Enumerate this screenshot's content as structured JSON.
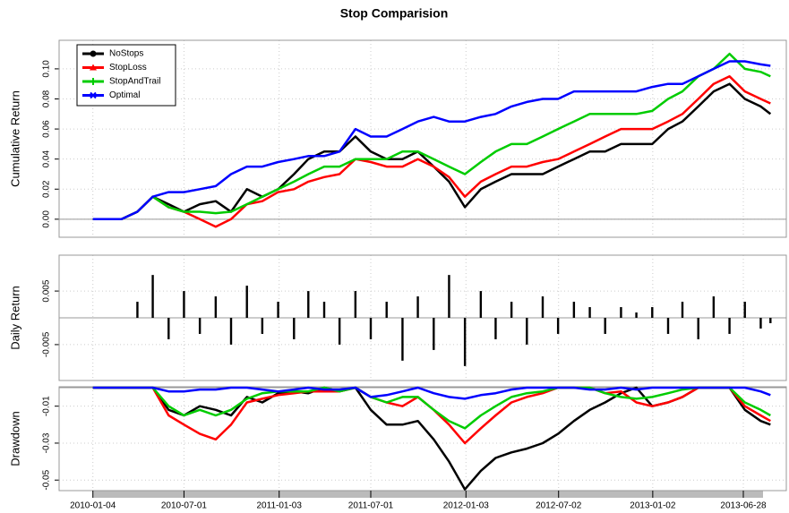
{
  "chart_data": [
    {
      "type": "line",
      "title": "Stop Comparision",
      "ylabel": "Cumulative Return",
      "legend": "topleft",
      "grid": true,
      "xlim": [
        "2009-10-30",
        "2013-09-20"
      ],
      "x": [
        "2010-01-04",
        "2010-02-01",
        "2010-03-01",
        "2010-04-01",
        "2010-05-01",
        "2010-06-01",
        "2010-07-01",
        "2010-08-01",
        "2010-09-01",
        "2010-10-01",
        "2010-11-01",
        "2010-12-01",
        "2011-01-01",
        "2011-02-01",
        "2011-03-01",
        "2011-04-01",
        "2011-05-01",
        "2011-06-01",
        "2011-07-01",
        "2011-08-01",
        "2011-09-01",
        "2011-10-01",
        "2011-11-01",
        "2011-12-01",
        "2012-01-01",
        "2012-02-01",
        "2012-03-01",
        "2012-04-01",
        "2012-05-01",
        "2012-06-01",
        "2012-07-01",
        "2012-08-01",
        "2012-09-01",
        "2012-10-01",
        "2012-11-01",
        "2012-12-01",
        "2013-01-01",
        "2013-02-01",
        "2013-03-01",
        "2013-04-01",
        "2013-05-01",
        "2013-06-01",
        "2013-07-01",
        "2013-08-01",
        "2013-08-20"
      ],
      "ylim": [
        -0.012,
        0.119
      ],
      "yticks": [
        {
          "value": 0,
          "label": "0.00"
        },
        {
          "value": 0.02,
          "label": "0.02"
        },
        {
          "value": 0.04,
          "label": "0.04"
        },
        {
          "value": 0.06,
          "label": "0.06"
        },
        {
          "value": 0.08,
          "label": "0.08"
        },
        {
          "value": 0.1,
          "label": "0.10"
        }
      ],
      "series": [
        {
          "name": "NoStops",
          "color": "#000000",
          "values": [
            0,
            0,
            0,
            0.005,
            0.015,
            0.01,
            0.005,
            0.01,
            0.012,
            0.005,
            0.02,
            0.015,
            0.02,
            0.03,
            0.04,
            0.045,
            0.045,
            0.055,
            0.045,
            0.04,
            0.04,
            0.045,
            0.035,
            0.025,
            0.008,
            0.02,
            0.025,
            0.03,
            0.03,
            0.03,
            0.035,
            0.04,
            0.045,
            0.045,
            0.05,
            0.05,
            0.05,
            0.06,
            0.065,
            0.075,
            0.085,
            0.09,
            0.08,
            0.075,
            0.07
          ]
        },
        {
          "name": "StopLoss",
          "color": "#ff0000",
          "values": [
            0,
            0,
            0,
            0.005,
            0.015,
            0.008,
            0.005,
            0.0,
            -0.005,
            0.0,
            0.01,
            0.012,
            0.018,
            0.02,
            0.025,
            0.028,
            0.03,
            0.04,
            0.038,
            0.035,
            0.035,
            0.04,
            0.035,
            0.028,
            0.015,
            0.025,
            0.03,
            0.035,
            0.035,
            0.038,
            0.04,
            0.045,
            0.05,
            0.055,
            0.06,
            0.06,
            0.06,
            0.065,
            0.07,
            0.08,
            0.09,
            0.095,
            0.085,
            0.08,
            0.077
          ]
        },
        {
          "name": "StopAndTrail",
          "color": "#00cc00",
          "values": [
            0,
            0,
            0,
            0.005,
            0.015,
            0.008,
            0.005,
            0.005,
            0.004,
            0.005,
            0.01,
            0.015,
            0.02,
            0.025,
            0.03,
            0.035,
            0.035,
            0.04,
            0.04,
            0.04,
            0.045,
            0.045,
            0.04,
            0.035,
            0.03,
            0.038,
            0.045,
            0.05,
            0.05,
            0.055,
            0.06,
            0.065,
            0.07,
            0.07,
            0.07,
            0.07,
            0.072,
            0.08,
            0.085,
            0.095,
            0.1,
            0.11,
            0.1,
            0.098,
            0.095
          ]
        },
        {
          "name": "Optimal",
          "color": "#0000ff",
          "values": [
            0,
            0,
            0,
            0.005,
            0.015,
            0.018,
            0.018,
            0.02,
            0.022,
            0.03,
            0.035,
            0.035,
            0.038,
            0.04,
            0.042,
            0.042,
            0.045,
            0.06,
            0.055,
            0.055,
            0.06,
            0.065,
            0.068,
            0.065,
            0.065,
            0.068,
            0.07,
            0.075,
            0.078,
            0.08,
            0.08,
            0.085,
            0.085,
            0.085,
            0.085,
            0.085,
            0.088,
            0.09,
            0.09,
            0.095,
            0.1,
            0.105,
            0.105,
            0.103,
            0.102
          ]
        }
      ]
    },
    {
      "type": "bar",
      "ylabel": "Daily Return",
      "grid": true,
      "color": "#000000",
      "xlim": [
        "2009-10-30",
        "2013-09-20"
      ],
      "x": [
        "2010-01-04",
        "2010-02-01",
        "2010-03-01",
        "2010-04-01",
        "2010-05-01",
        "2010-06-01",
        "2010-07-01",
        "2010-08-01",
        "2010-09-01",
        "2010-10-01",
        "2010-11-01",
        "2010-12-01",
        "2011-01-01",
        "2011-02-01",
        "2011-03-01",
        "2011-04-01",
        "2011-05-01",
        "2011-06-01",
        "2011-07-01",
        "2011-08-01",
        "2011-09-01",
        "2011-10-01",
        "2011-11-01",
        "2011-12-01",
        "2012-01-01",
        "2012-02-01",
        "2012-03-01",
        "2012-04-01",
        "2012-05-01",
        "2012-06-01",
        "2012-07-01",
        "2012-08-01",
        "2012-09-01",
        "2012-10-01",
        "2012-11-01",
        "2012-12-01",
        "2013-01-01",
        "2013-02-01",
        "2013-03-01",
        "2013-04-01",
        "2013-05-01",
        "2013-06-01",
        "2013-07-01",
        "2013-08-01",
        "2013-08-20"
      ],
      "ylim": [
        -0.0117,
        0.0117
      ],
      "yticks": [
        -0.005,
        0.005
      ],
      "values": [
        0,
        0,
        0,
        0.003,
        0.008,
        -0.004,
        0.005,
        -0.003,
        0.004,
        -0.005,
        0.006,
        -0.003,
        0.003,
        -0.004,
        0.005,
        0.003,
        -0.005,
        0.005,
        -0.004,
        0.003,
        -0.008,
        0.004,
        -0.006,
        0.008,
        -0.009,
        0.005,
        -0.004,
        0.003,
        -0.005,
        0.004,
        -0.003,
        0.003,
        0.002,
        -0.003,
        0.002,
        0.001,
        0.002,
        -0.003,
        0.003,
        -0.004,
        0.004,
        -0.003,
        0.003,
        -0.002,
        -0.001
      ]
    },
    {
      "type": "line",
      "ylabel": "Drawdown",
      "grid": true,
      "xlim": [
        "2009-10-30",
        "2013-09-20"
      ],
      "xticks": [
        "2010-01-04",
        "2010-07-01",
        "2011-01-03",
        "2011-07-01",
        "2012-01-03",
        "2012-07-02",
        "2013-01-02",
        "2013-06-28"
      ],
      "x": [
        "2010-01-04",
        "2010-02-01",
        "2010-03-01",
        "2010-04-01",
        "2010-05-01",
        "2010-06-01",
        "2010-07-01",
        "2010-08-01",
        "2010-09-01",
        "2010-10-01",
        "2010-11-01",
        "2010-12-01",
        "2011-01-01",
        "2011-02-01",
        "2011-03-01",
        "2011-04-01",
        "2011-05-01",
        "2011-06-01",
        "2011-07-01",
        "2011-08-01",
        "2011-09-01",
        "2011-10-01",
        "2011-11-01",
        "2011-12-01",
        "2012-01-01",
        "2012-02-01",
        "2012-03-01",
        "2012-04-01",
        "2012-05-01",
        "2012-06-01",
        "2012-07-01",
        "2012-08-01",
        "2012-09-01",
        "2012-10-01",
        "2012-11-01",
        "2012-12-01",
        "2013-01-01",
        "2013-02-01",
        "2013-03-01",
        "2013-04-01",
        "2013-05-01",
        "2013-06-01",
        "2013-07-01",
        "2013-08-01",
        "2013-08-20"
      ],
      "ylim": [
        -0.0557,
        0.0005
      ],
      "yticks": [
        -0.05,
        -0.03,
        -0.01
      ],
      "series": [
        {
          "name": "NoStops",
          "color": "#000000",
          "values": [
            0,
            0,
            0,
            0,
            0,
            -0.012,
            -0.015,
            -0.01,
            -0.012,
            -0.015,
            -0.005,
            -0.008,
            -0.003,
            -0.002,
            -0.003,
            0,
            -0.002,
            0,
            -0.012,
            -0.02,
            -0.02,
            -0.018,
            -0.028,
            -0.04,
            -0.055,
            -0.045,
            -0.038,
            -0.035,
            -0.033,
            -0.03,
            -0.025,
            -0.018,
            -0.012,
            -0.008,
            -0.003,
            0,
            -0.01,
            -0.008,
            -0.005,
            0,
            0,
            0,
            -0.012,
            -0.018,
            -0.02
          ]
        },
        {
          "name": "StopLoss",
          "color": "#ff0000",
          "values": [
            0,
            0,
            0,
            0,
            0,
            -0.015,
            -0.02,
            -0.025,
            -0.028,
            -0.02,
            -0.008,
            -0.006,
            -0.004,
            -0.003,
            -0.002,
            -0.002,
            -0.002,
            0,
            -0.005,
            -0.008,
            -0.01,
            -0.005,
            -0.012,
            -0.02,
            -0.03,
            -0.022,
            -0.015,
            -0.008,
            -0.005,
            -0.003,
            0,
            0,
            0,
            -0.003,
            -0.002,
            -0.008,
            -0.01,
            -0.008,
            -0.005,
            0,
            0,
            0,
            -0.01,
            -0.015,
            -0.018
          ]
        },
        {
          "name": "StopAndTrail",
          "color": "#00cc00",
          "values": [
            0,
            0,
            0,
            0,
            0,
            -0.01,
            -0.015,
            -0.012,
            -0.015,
            -0.012,
            -0.006,
            -0.003,
            -0.002,
            -0.002,
            -0.002,
            0,
            -0.002,
            0,
            -0.005,
            -0.008,
            -0.005,
            -0.005,
            -0.012,
            -0.018,
            -0.022,
            -0.015,
            -0.01,
            -0.005,
            -0.003,
            -0.002,
            0,
            0,
            0,
            -0.003,
            -0.005,
            -0.006,
            -0.005,
            -0.003,
            -0.001,
            0,
            0,
            0,
            -0.008,
            -0.012,
            -0.015
          ]
        },
        {
          "name": "Optimal",
          "color": "#0000ff",
          "values": [
            0,
            0,
            0,
            0,
            0,
            -0.002,
            -0.002,
            -0.001,
            -0.001,
            0,
            0,
            -0.001,
            -0.002,
            -0.001,
            0,
            -0.001,
            -0.001,
            0,
            -0.005,
            -0.004,
            -0.002,
            0,
            -0.003,
            -0.005,
            -0.006,
            -0.004,
            -0.003,
            -0.001,
            0,
            0,
            0,
            0,
            -0.001,
            -0.001,
            0,
            -0.001,
            0,
            0,
            0,
            0,
            0,
            0,
            0,
            -0.002,
            -0.004
          ]
        }
      ]
    }
  ]
}
